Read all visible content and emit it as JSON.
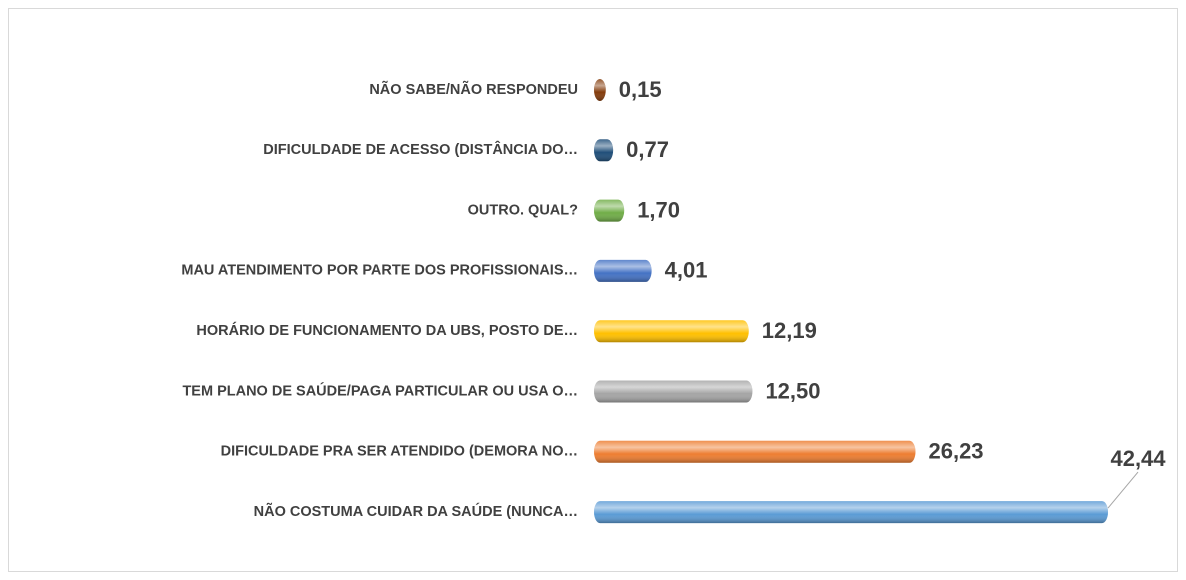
{
  "chart_data": {
    "type": "bar",
    "orientation": "horizontal",
    "categories": [
      "NÃO SABE/NÃO RESPONDEU",
      "DIFICULDADE DE ACESSO (DISTÂNCIA DO…",
      "OUTRO. QUAL?",
      "MAU ATENDIMENTO POR PARTE DOS PROFISSIONAIS…",
      "HORÁRIO DE FUNCIONAMENTO DA UBS, POSTO DE…",
      "TEM PLANO DE SAÚDE/PAGA PARTICULAR OU USA O…",
      "DIFICULDADE PRA SER ATENDIDO (DEMORA NO…",
      "NÃO COSTUMA CUIDAR DA SAÚDE (NUNCA…"
    ],
    "values": [
      0.15,
      0.77,
      1.7,
      4.01,
      12.19,
      12.5,
      26.23,
      42.44
    ],
    "value_labels": [
      "0,15",
      "0,77",
      "1,70",
      "4,01",
      "12,19",
      "12,50",
      "26,23",
      "42,44"
    ],
    "colors": [
      "#843c0c",
      "#1f4e79",
      "#70ad47",
      "#4472c4",
      "#ffc000",
      "#a5a5a5",
      "#ed7d31",
      "#5b9bd5"
    ]
  }
}
